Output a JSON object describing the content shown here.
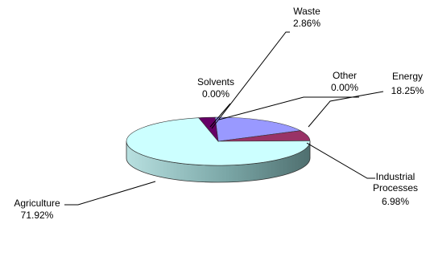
{
  "chart_data": {
    "type": "pie",
    "title": "",
    "slices": [
      {
        "label": "Energy",
        "value": 18.25,
        "display": "18.25%",
        "color": "#9999ff"
      },
      {
        "label": "Industrial Processes",
        "value": 6.98,
        "display": "6.98%",
        "color": "#993366"
      },
      {
        "label": "Other",
        "value": 0.0,
        "display": "0.00%",
        "color": "#ccffff"
      },
      {
        "label": "Agriculture",
        "value": 71.92,
        "display": "71.92%",
        "color": "#ccffff"
      },
      {
        "label": "Solvents",
        "value": 0.0,
        "display": "0.00%",
        "color": "#ccffff"
      },
      {
        "label": "Waste",
        "value": 2.86,
        "display": "2.86%",
        "color": "#660066"
      }
    ],
    "legend": "none",
    "grid": false,
    "style": "3d"
  }
}
